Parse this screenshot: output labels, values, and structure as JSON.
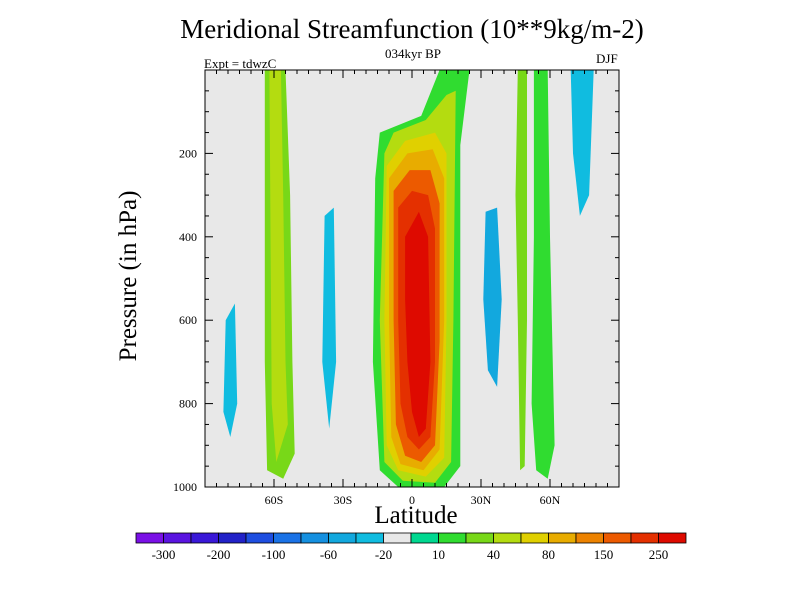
{
  "chart_data": {
    "type": "heatmap",
    "title": "Meridional Streamfunction (10**9kg/m-2)",
    "subtitle": "034kyr BP",
    "annotation_left": "Expt = tdwzC",
    "annotation_right": "DJF",
    "xlabel": "Latitude",
    "ylabel": "Pressure (in hPa)",
    "xlim": [
      -90,
      90
    ],
    "ylim": [
      1000,
      0
    ],
    "y_scale": "linear, inverted",
    "xticks": [
      {
        "value": -60,
        "label": "60S"
      },
      {
        "value": -30,
        "label": "30S"
      },
      {
        "value": 0,
        "label": "0"
      },
      {
        "value": 30,
        "label": "30N"
      },
      {
        "value": 60,
        "label": "60N"
      }
    ],
    "yticks": [
      {
        "value": 200,
        "label": "200"
      },
      {
        "value": 400,
        "label": "400"
      },
      {
        "value": 600,
        "label": "600"
      },
      {
        "value": 800,
        "label": "800"
      },
      {
        "value": 1000,
        "label": "1000"
      }
    ],
    "colorbar": {
      "levels": [
        -300,
        -250,
        -200,
        -150,
        -100,
        -80,
        -60,
        -40,
        -20,
        -10,
        10,
        20,
        40,
        60,
        80,
        100,
        150,
        200,
        250,
        300
      ],
      "colors": [
        "#7a10e6",
        "#5a14e0",
        "#3a18d8",
        "#2222c8",
        "#1e4ee0",
        "#1a72e6",
        "#1590e0",
        "#12a8de",
        "#10bce0",
        "#e8e8e8",
        "#00d890",
        "#30dc30",
        "#78d818",
        "#b4dc10",
        "#e0d000",
        "#e8ac00",
        "#ec8200",
        "#ec5a00",
        "#e43000",
        "#de0a00"
      ],
      "labels": [
        {
          "value": -300,
          "label": "-300"
        },
        {
          "value": -200,
          "label": "-200"
        },
        {
          "value": -100,
          "label": "-100"
        },
        {
          "value": -60,
          "label": "-60"
        },
        {
          "value": -20,
          "label": "-20"
        },
        {
          "value": 10,
          "label": "10"
        },
        {
          "value": 40,
          "label": "40"
        },
        {
          "value": 80,
          "label": "80"
        },
        {
          "value": 150,
          "label": "150"
        },
        {
          "value": 250,
          "label": "250"
        }
      ]
    },
    "field_features": [
      {
        "kind": "negative column",
        "lat_center": -77,
        "lat_width": 6,
        "p_top": 0,
        "p_bottom": 920,
        "level": -20
      },
      {
        "kind": "positive column",
        "lat_center": -58,
        "lat_width": 8,
        "p_top": 0,
        "p_bottom": 980,
        "level": 20
      },
      {
        "kind": "negative column",
        "lat_center": -42,
        "lat_width": 10,
        "p_top": 0,
        "p_bottom": 990,
        "level": -20
      },
      {
        "kind": "hadley cell",
        "lat_center": 5,
        "lat_width": 22,
        "p_top": 0,
        "p_bottom": 1000,
        "max": 300,
        "max_at": [
          8,
          560
        ]
      },
      {
        "kind": "negative column",
        "lat_center": 38,
        "lat_width": 10,
        "p_top": 0,
        "p_bottom": 920,
        "level": -40
      },
      {
        "kind": "positive column",
        "lat_center": 57,
        "lat_width": 4,
        "p_top": 0,
        "p_bottom": 960,
        "level": 10
      },
      {
        "kind": "negative column",
        "lat_center": 75,
        "lat_width": 8,
        "p_top": 0,
        "p_bottom": 940,
        "level": -20
      }
    ]
  }
}
